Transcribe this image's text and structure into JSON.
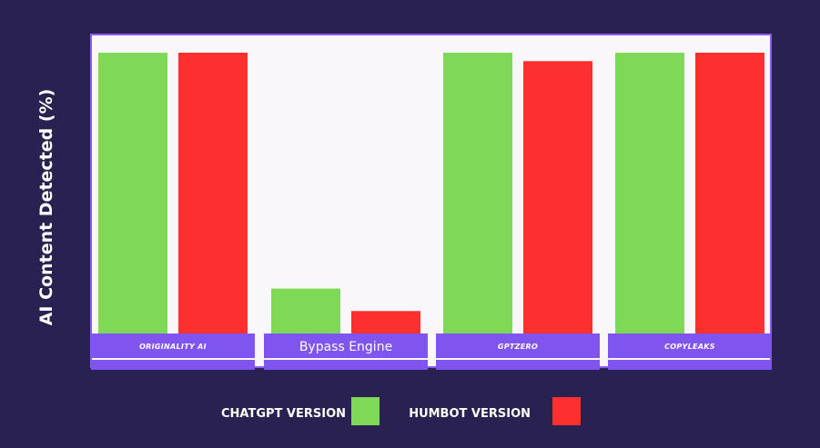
{
  "chart_data": {
    "type": "bar",
    "ylabel": "AI Content Detected (%)",
    "ylim": [
      0,
      100
    ],
    "grid": false,
    "legend_position": "bottom",
    "categories": [
      "ORIGINALITY AI",
      "Bypass Engine",
      "GPTZERO",
      "COPYLEAKS"
    ],
    "category_label_styles": [
      "italic",
      "plain",
      "italic",
      "italic"
    ],
    "series": [
      {
        "name": "CHATGPT VERSION",
        "color": "#7fd957",
        "values": [
          100,
          16,
          100,
          100
        ]
      },
      {
        "name": "HUMBOT VERSION",
        "color": "#fe2f2f",
        "values": [
          100,
          8,
          97,
          100
        ]
      }
    ]
  },
  "colors": {
    "background": "#29214f",
    "plot_background": "#faf7fa",
    "plot_border": "#8c5cf2",
    "category_band": "#8054ee"
  }
}
